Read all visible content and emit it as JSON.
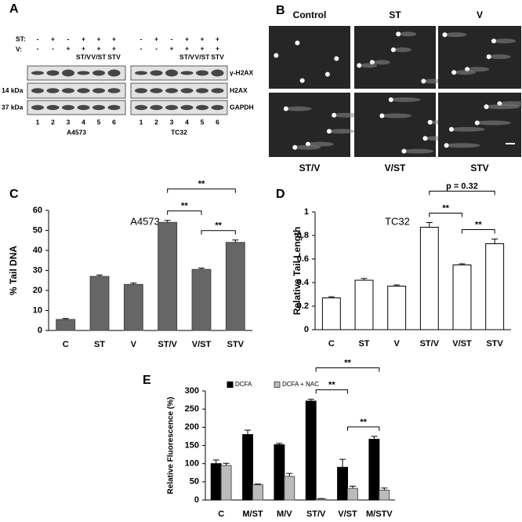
{
  "figure": {
    "panel_labels": [
      "A",
      "B",
      "C",
      "D",
      "E"
    ],
    "blot": {
      "row_labels": [
        "ST:",
        "V:"
      ],
      "groups": [
        {
          "name": "A4573",
          "st": [
            "-",
            "+",
            "-",
            "+",
            "+",
            "+"
          ],
          "v": [
            "-",
            "-",
            "+",
            "+",
            "+",
            "+"
          ],
          "treatments": [
            "ST/V",
            "V/ST",
            "STV"
          ],
          "lanes": [
            "1",
            "2",
            "3",
            "4",
            "5",
            "6"
          ]
        },
        {
          "name": "TC32",
          "st": [
            "-",
            "+",
            "-",
            "+",
            "+",
            "+"
          ],
          "v": [
            "-",
            "-",
            "+",
            "+",
            "+",
            "+"
          ],
          "treatments": [
            "ST/V",
            "V/ST",
            "STV"
          ],
          "lanes": [
            "1",
            "2",
            "3",
            "4",
            "5",
            "6"
          ]
        }
      ],
      "bands": [
        "γ-H2AX",
        "H2AX",
        "GAPDH"
      ],
      "sizes": [
        "14 kDa",
        "37 kDa"
      ]
    },
    "comet": {
      "labels": [
        "Control",
        "ST",
        "V",
        "ST/V",
        "V/ST",
        "STV"
      ]
    }
  },
  "chart_data": [
    {
      "type": "bar",
      "title": "A4573",
      "ylabel": "% Tail DNA",
      "categories": [
        "C",
        "ST",
        "V",
        "ST/V",
        "V/ST",
        "STV"
      ],
      "series": [
        {
          "color": "#666666",
          "edgecolor": "#444444",
          "values": [
            5.5,
            27,
            23,
            54,
            30.5,
            44
          ],
          "errors": [
            0.5,
            0.7,
            0.7,
            1,
            0.7,
            1.2
          ]
        }
      ],
      "ylim": [
        0,
        60
      ],
      "yticks": [
        0,
        10,
        20,
        30,
        40,
        50,
        60
      ],
      "annotations": [
        {
          "text": "**",
          "between": [
            "ST/V",
            "V/ST"
          ]
        },
        {
          "text": "**",
          "between": [
            "ST/V",
            "STV"
          ]
        },
        {
          "text": "**",
          "between": [
            "V/ST",
            "STV"
          ]
        }
      ]
    },
    {
      "type": "bar",
      "title": "TC32",
      "ylabel": "Relative Tail Length",
      "categories": [
        "C",
        "ST",
        "V",
        "ST/V",
        "V/ST",
        "STV"
      ],
      "series": [
        {
          "color": "#ffffff",
          "edgecolor": "#000000",
          "values": [
            0.27,
            0.42,
            0.37,
            0.87,
            0.55,
            0.73
          ],
          "errors": [
            0.01,
            0.015,
            0.01,
            0.04,
            0.01,
            0.04
          ]
        }
      ],
      "ylim": [
        0,
        1
      ],
      "yticks": [
        0,
        0.2,
        0.4,
        0.6,
        0.8,
        1
      ],
      "annotations": [
        {
          "text": "**",
          "between": [
            "ST/V",
            "V/ST"
          ]
        },
        {
          "text": "p = 0.32",
          "between": [
            "ST/V",
            "STV"
          ]
        },
        {
          "text": "**",
          "between": [
            "V/ST",
            "STV"
          ]
        }
      ]
    },
    {
      "type": "bar",
      "ylabel": "Relative Fluorescence (%)",
      "categories": [
        "C",
        "M/ST",
        "M/V",
        "ST/V",
        "V/ST",
        "M/STV"
      ],
      "series": [
        {
          "name": "DCFA",
          "color": "#000000",
          "edgecolor": "#000000",
          "values": [
            100,
            180,
            152,
            272,
            90,
            167
          ],
          "errors": [
            10,
            12,
            4,
            5,
            22,
            8
          ]
        },
        {
          "name": "DCFA + NAC",
          "color": "#bbbbbb",
          "edgecolor": "#555555",
          "values": [
            95,
            42,
            65,
            3,
            32,
            27
          ],
          "errors": [
            6,
            2,
            8,
            1,
            6,
            6
          ]
        }
      ],
      "ylim": [
        0,
        300
      ],
      "yticks": [
        0,
        50,
        100,
        150,
        200,
        250,
        300
      ],
      "annotations": [
        {
          "text": "**",
          "between": [
            "ST/V",
            "V/ST"
          ]
        },
        {
          "text": "**",
          "between": [
            "ST/V",
            "M/STV"
          ]
        },
        {
          "text": "**",
          "between": [
            "V/ST",
            "M/STV"
          ]
        }
      ]
    }
  ]
}
